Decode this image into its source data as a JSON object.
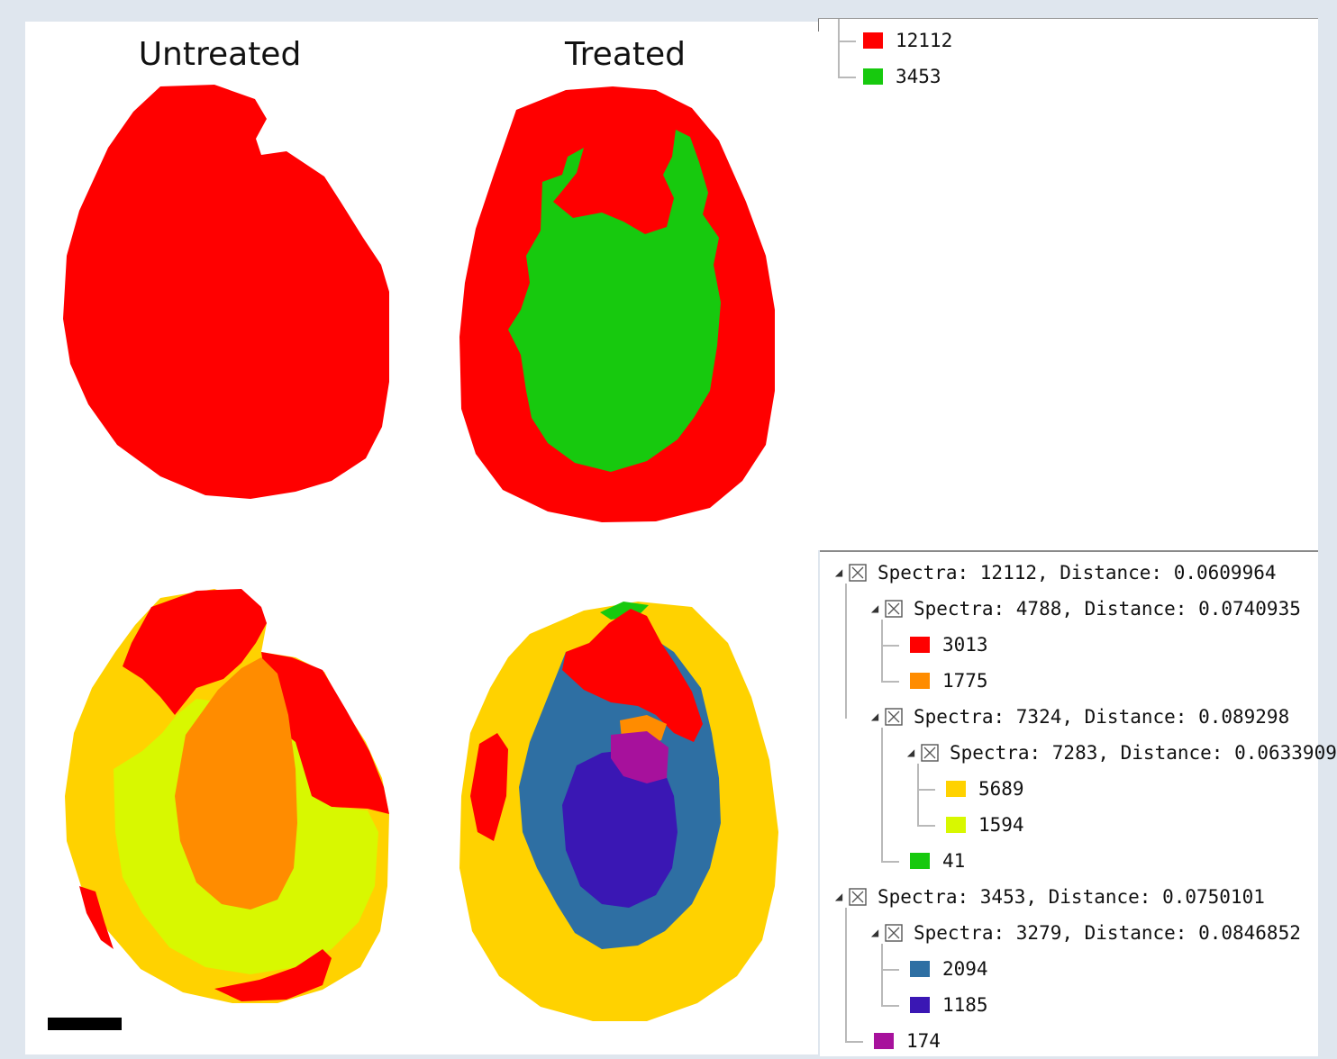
{
  "figure": {
    "labels": {
      "untreated": "Untreated",
      "treated": "Treated"
    }
  },
  "colors": {
    "red": "#ff0000",
    "green": "#17c90e",
    "orange": "#ff8c00",
    "yellow": "#ffd200",
    "lime": "#d8f800",
    "steel_blue": "#2e6fa3",
    "indigo": "#3a17b4",
    "purple": "#a7119c",
    "background": "#dfe6ee"
  },
  "top_tree": {
    "items": [
      {
        "label": "12112",
        "color": "red"
      },
      {
        "label": "3453",
        "color": "green"
      }
    ]
  },
  "bottom_tree": {
    "nodes": [
      {
        "label": "Spectra: 12112, Distance: 0.0609964",
        "kind": "cluster",
        "level": 0
      },
      {
        "label": "Spectra: 4788, Distance: 0.0740935",
        "kind": "cluster",
        "level": 1
      },
      {
        "label": "3013",
        "kind": "leaf",
        "color": "red",
        "level": 2
      },
      {
        "label": "1775",
        "kind": "leaf",
        "color": "orange",
        "level": 2
      },
      {
        "label": "Spectra: 7324, Distance: 0.089298",
        "kind": "cluster",
        "level": 1
      },
      {
        "label": "Spectra: 7283, Distance: 0.0633909",
        "kind": "cluster",
        "level": 2
      },
      {
        "label": "5689",
        "kind": "leaf",
        "color": "yellow",
        "level": 3
      },
      {
        "label": "1594",
        "kind": "leaf",
        "color": "lime",
        "level": 3
      },
      {
        "label": "41",
        "kind": "leaf",
        "color": "green",
        "level": 2
      },
      {
        "label": "Spectra: 3453, Distance: 0.0750101",
        "kind": "cluster",
        "level": 0
      },
      {
        "label": "Spectra: 3279, Distance: 0.0846852",
        "kind": "cluster",
        "level": 1
      },
      {
        "label": "2094",
        "kind": "leaf",
        "color": "steel_blue",
        "level": 2
      },
      {
        "label": "1185",
        "kind": "leaf",
        "color": "indigo",
        "level": 2
      },
      {
        "label": "174",
        "kind": "leaf",
        "color": "purple",
        "level": 1
      }
    ]
  }
}
